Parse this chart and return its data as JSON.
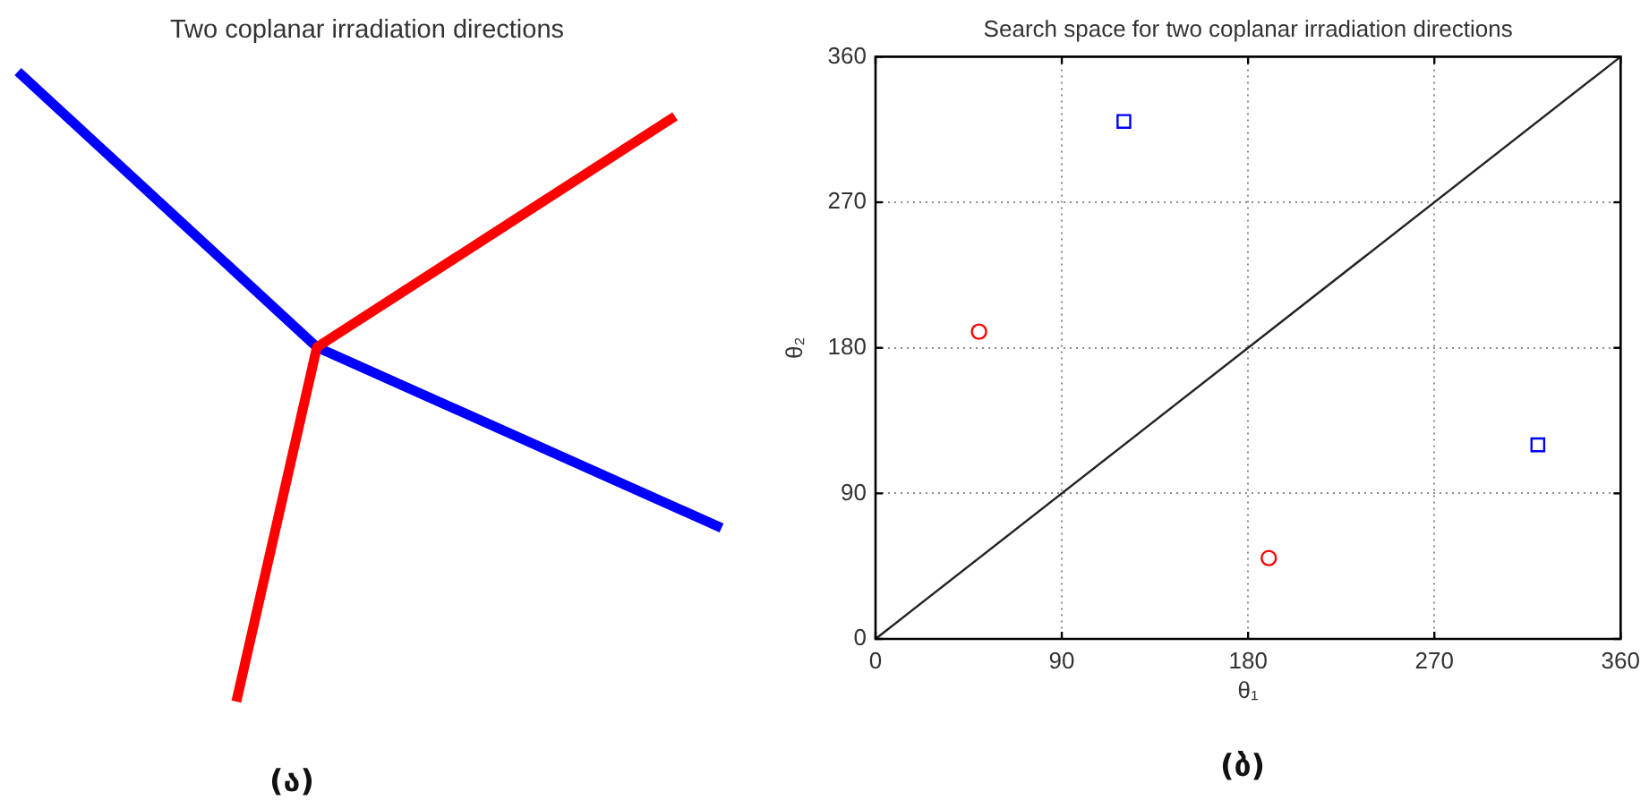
{
  "chart_data": [
    {
      "type": "other",
      "title": "Two coplanar irradiation directions",
      "annotations": [
        "(ა)"
      ]
    },
    {
      "type": "scatter",
      "title": "Search space for two coplanar irradiation directions",
      "xlabel": "θ₁",
      "ylabel": "θ₂",
      "xlim": [
        0,
        360
      ],
      "ylim": [
        0,
        360
      ],
      "xticks": [
        0,
        90,
        180,
        270,
        360
      ],
      "yticks": [
        0,
        90,
        180,
        270,
        360
      ],
      "grid": true,
      "series": [
        {
          "type": "line",
          "color": "#222222",
          "x": [
            0,
            360
          ],
          "values": [
            0,
            360
          ]
        },
        {
          "color": "#ff0000",
          "marker": "circle",
          "x": [
            50,
            190
          ],
          "values": [
            190,
            50
          ]
        },
        {
          "color": "#0000ff",
          "marker": "square",
          "x": [
            120,
            320
          ],
          "values": [
            320,
            120
          ]
        }
      ],
      "annotations": [
        "(ბ)"
      ]
    }
  ]
}
